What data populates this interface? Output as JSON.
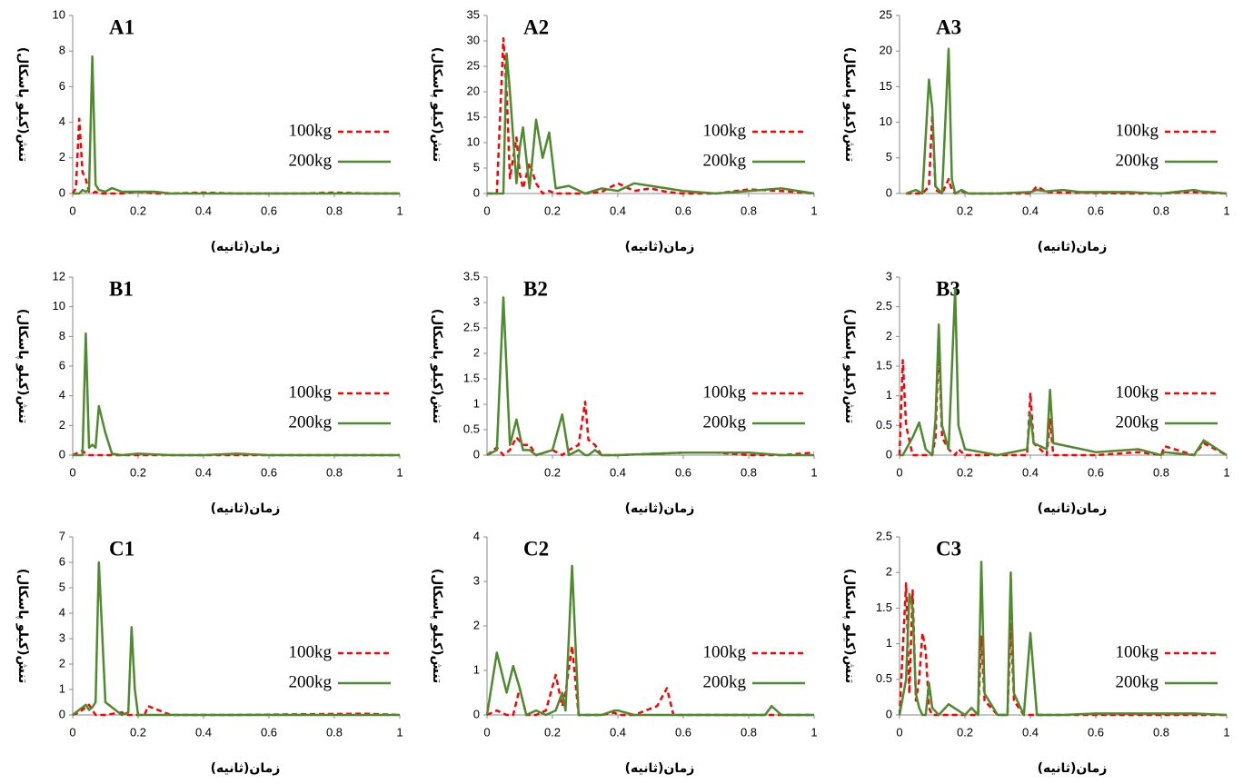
{
  "chart_data": [
    {
      "type": "line",
      "title": "A1",
      "title_color": "#2db34a",
      "xlabel": "زمان(ثانیه)",
      "ylabel": "تنش(کیلو پاسکال)",
      "x": [
        0,
        0.01,
        0.02,
        0.03,
        0.04,
        0.05,
        0.06,
        0.07,
        0.08,
        0.1,
        0.12,
        0.15,
        0.2,
        0.25,
        0.3,
        0.4,
        0.5,
        0.6,
        0.7,
        0.8,
        0.9,
        1
      ],
      "series": [
        {
          "name": "100kg",
          "color": "#ff0000",
          "dashed": true,
          "values": [
            0,
            0.3,
            4.2,
            1.2,
            0.8,
            0.1,
            0,
            0.1,
            0,
            0,
            0,
            0,
            0.1,
            0,
            0,
            0.05,
            0,
            0,
            0,
            0.05,
            0,
            0
          ]
        },
        {
          "name": "200kg",
          "color": "#4e8a2e",
          "dashed": false,
          "values": [
            0,
            0,
            0,
            0.2,
            0.1,
            0.2,
            7.7,
            0.5,
            0.2,
            0.1,
            0.3,
            0.1,
            0.1,
            0.1,
            0,
            0,
            0,
            0,
            0,
            0,
            0,
            0
          ]
        }
      ],
      "xlim": [
        0,
        1
      ],
      "xticks": [
        0,
        0.2,
        0.4,
        0.6,
        0.8,
        1
      ],
      "ylim": [
        0,
        10
      ],
      "yticks": [
        0,
        2,
        4,
        6,
        8,
        10
      ]
    },
    {
      "type": "line",
      "title": "A2",
      "title_color": "#2db34a",
      "xlabel": "زمان(ثانیه)",
      "ylabel": "تنش(کیلو پاسکال)",
      "x": [
        0,
        0.03,
        0.05,
        0.06,
        0.07,
        0.09,
        0.1,
        0.11,
        0.13,
        0.15,
        0.17,
        0.19,
        0.21,
        0.25,
        0.3,
        0.35,
        0.4,
        0.45,
        0.5,
        0.55,
        0.6,
        0.7,
        0.8,
        0.9,
        1
      ],
      "series": [
        {
          "name": "100kg",
          "color": "#ff0000",
          "dashed": true,
          "values": [
            0,
            0,
            30.5,
            20,
            3,
            11,
            4,
            1,
            6,
            2,
            0,
            0.5,
            0,
            0,
            0,
            0.3,
            2,
            0.5,
            1,
            0.3,
            0,
            0,
            0.8,
            0.5,
            0
          ]
        },
        {
          "name": "200kg",
          "color": "#4e8a2e",
          "dashed": false,
          "values": [
            0,
            0,
            0,
            27.5,
            20,
            2,
            9,
            13,
            1,
            14.5,
            7,
            12,
            1,
            1.5,
            0,
            1,
            0.5,
            2,
            1.5,
            1,
            0.5,
            0,
            0.5,
            1,
            0
          ]
        }
      ],
      "xlim": [
        0,
        1
      ],
      "xticks": [
        0,
        0.2,
        0.4,
        0.6,
        0.8,
        1
      ],
      "ylim": [
        0,
        35
      ],
      "yticks": [
        0,
        5,
        10,
        15,
        20,
        25,
        30,
        35
      ]
    },
    {
      "type": "line",
      "title": "A3",
      "title_color": "#2db34a",
      "xlabel": "زمان(ثانیه)",
      "ylabel": "تنش(کیلو پاسکال)",
      "x": [
        0.02,
        0.05,
        0.07,
        0.09,
        0.1,
        0.11,
        0.13,
        0.15,
        0.16,
        0.17,
        0.19,
        0.21,
        0.3,
        0.4,
        0.42,
        0.45,
        0.5,
        0.55,
        0.7,
        0.8,
        0.9,
        0.92,
        1
      ],
      "series": [
        {
          "name": "100kg",
          "color": "#ff0000",
          "dashed": true,
          "values": [
            0,
            0,
            0,
            1,
            11,
            0.5,
            0,
            2,
            0.5,
            0,
            0.3,
            0,
            0,
            0,
            1,
            0.2,
            0.1,
            0.1,
            0,
            0,
            0.2,
            0.1,
            0
          ]
        },
        {
          "name": "200kg",
          "color": "#4e8a2e",
          "dashed": false,
          "values": [
            0,
            0.5,
            0,
            16,
            12,
            1,
            0,
            20.3,
            2,
            0,
            0.5,
            0,
            0,
            0.2,
            0.5,
            0.3,
            0.5,
            0.2,
            0.2,
            0,
            0.5,
            0.3,
            0
          ]
        }
      ],
      "xlim": [
        0,
        1
      ],
      "xticks": [
        0.2,
        0.4,
        0.6,
        0.8,
        1
      ],
      "ylim": [
        0,
        25
      ],
      "yticks": [
        0,
        5,
        10,
        15,
        20,
        25
      ]
    },
    {
      "type": "line",
      "title": "B1",
      "title_color": "#f79646",
      "xlabel": "زمان(ثانیه)",
      "ylabel": "تنش(کیلو پاسکال)",
      "x": [
        0,
        0.03,
        0.04,
        0.05,
        0.06,
        0.07,
        0.08,
        0.1,
        0.12,
        0.15,
        0.2,
        0.3,
        0.4,
        0.5,
        0.6,
        0.8,
        1
      ],
      "series": [
        {
          "name": "100kg",
          "color": "#ff0000",
          "dashed": true,
          "values": [
            0,
            0.3,
            0.1,
            0,
            0,
            0,
            0,
            0,
            0,
            0,
            0,
            0,
            0,
            0,
            0,
            0,
            0
          ]
        },
        {
          "name": "200kg",
          "color": "#4e8a2e",
          "dashed": false,
          "values": [
            0,
            0,
            8.2,
            0.5,
            0.7,
            0.5,
            3.3,
            1.5,
            0.1,
            0,
            0.1,
            0,
            0,
            0.1,
            0,
            0,
            0
          ]
        }
      ],
      "xlim": [
        0,
        1
      ],
      "xticks": [
        0,
        0.2,
        0.4,
        0.6,
        0.8,
        1
      ],
      "ylim": [
        0,
        12
      ],
      "yticks": [
        0,
        2,
        4,
        6,
        8,
        10,
        12
      ]
    },
    {
      "type": "line",
      "title": "B2",
      "title_color": "#f79646",
      "xlabel": "زمان(ثانیه)",
      "ylabel": "تنش(کیلو پاسکال)",
      "x": [
        0,
        0.03,
        0.05,
        0.07,
        0.09,
        0.11,
        0.13,
        0.15,
        0.2,
        0.23,
        0.25,
        0.28,
        0.3,
        0.31,
        0.33,
        0.35,
        0.4,
        0.6,
        0.7,
        0.8,
        0.9,
        1
      ],
      "series": [
        {
          "name": "100kg",
          "color": "#ff0000",
          "dashed": true,
          "values": [
            0,
            0.15,
            0,
            0.1,
            0.35,
            0.2,
            0.2,
            0,
            0.1,
            0,
            0.1,
            0.2,
            1.05,
            0.3,
            0.2,
            0,
            0,
            0.05,
            0.05,
            0,
            0,
            0.05
          ]
        },
        {
          "name": "200kg",
          "color": "#4e8a2e",
          "dashed": false,
          "values": [
            0,
            0.1,
            3.1,
            0.2,
            0.7,
            0.1,
            0.1,
            0,
            0.1,
            0.8,
            0,
            0.1,
            0,
            0,
            0.1,
            0,
            0,
            0.05,
            0.05,
            0.05,
            0,
            0
          ]
        }
      ],
      "xlim": [
        0,
        1
      ],
      "xticks": [
        0.2,
        0.4,
        0.6,
        0.8,
        1
      ],
      "ylim": [
        0,
        3.5
      ],
      "yticks": [
        0,
        0.5,
        1,
        1.5,
        2,
        2.5,
        3,
        3.5
      ]
    },
    {
      "type": "line",
      "title": "B3",
      "title_color": "#f79646",
      "xlabel": "زمان(ثانیه)",
      "ylabel": "تنش(کیلو پاسکال)",
      "x": [
        0,
        0.01,
        0.02,
        0.04,
        0.06,
        0.08,
        0.1,
        0.11,
        0.12,
        0.13,
        0.15,
        0.17,
        0.18,
        0.2,
        0.25,
        0.3,
        0.39,
        0.4,
        0.41,
        0.45,
        0.46,
        0.47,
        0.6,
        0.73,
        0.8,
        0.81,
        0.9,
        0.93,
        1
      ],
      "series": [
        {
          "name": "100kg",
          "color": "#ff0000",
          "dashed": true,
          "values": [
            0,
            1.6,
            0.5,
            0,
            0,
            0,
            0,
            0.3,
            1.95,
            0.3,
            0.1,
            0,
            0.1,
            0,
            0,
            0,
            0,
            1.05,
            0.2,
            0,
            0.6,
            0,
            0,
            0.05,
            0,
            0.15,
            0,
            0.2,
            0
          ]
        },
        {
          "name": "200kg",
          "color": "#4e8a2e",
          "dashed": false,
          "values": [
            0,
            0,
            0.1,
            0.3,
            0.55,
            0.1,
            0,
            0.6,
            2.2,
            0.5,
            0.1,
            2.8,
            0.5,
            0.1,
            0.05,
            0,
            0.1,
            0.7,
            0.2,
            0.1,
            1.1,
            0.2,
            0.05,
            0.1,
            0,
            0.05,
            0,
            0.25,
            0
          ]
        }
      ],
      "xlim": [
        0,
        1
      ],
      "xticks": [
        0,
        0.2,
        0.4,
        0.6,
        0.8,
        1
      ],
      "ylim": [
        0,
        3
      ],
      "yticks": [
        0,
        0.5,
        1,
        1.5,
        2,
        2.5,
        3
      ]
    },
    {
      "type": "line",
      "title": "C1",
      "title_color": "#8b1a2a",
      "xlabel": "زمان(ثانیه)",
      "ylabel": "تنش(کیلو پاسکال)",
      "x": [
        0,
        0.02,
        0.04,
        0.05,
        0.06,
        0.07,
        0.08,
        0.1,
        0.15,
        0.17,
        0.18,
        0.19,
        0.2,
        0.22,
        0.23,
        0.3,
        0.5,
        0.89,
        1
      ],
      "series": [
        {
          "name": "100kg",
          "color": "#ff0000",
          "dashed": true,
          "values": [
            0,
            0.1,
            0.3,
            0.4,
            0.2,
            0,
            0,
            0,
            0.1,
            0,
            0,
            0,
            0,
            0,
            0.35,
            0,
            0,
            0.05,
            0
          ]
        },
        {
          "name": "200kg",
          "color": "#4e8a2e",
          "dashed": false,
          "values": [
            0,
            0.2,
            0.4,
            0.2,
            0.3,
            0.5,
            6,
            0.5,
            0,
            0.1,
            3.45,
            1,
            0,
            0,
            0,
            0,
            0,
            0,
            0
          ]
        }
      ],
      "xlim": [
        0,
        1
      ],
      "xticks": [
        0,
        0.2,
        0.4,
        0.6,
        0.8,
        1
      ],
      "ylim": [
        0,
        7
      ],
      "yticks": [
        0,
        1,
        2,
        3,
        4,
        5,
        6,
        7
      ]
    },
    {
      "type": "line",
      "title": "C2",
      "title_color": "#8b1a2a",
      "xlabel": "زمان(ثانیه)",
      "ylabel": "تنش(کیلو پاسکال)",
      "x": [
        0,
        0.03,
        0.06,
        0.08,
        0.1,
        0.12,
        0.15,
        0.18,
        0.21,
        0.23,
        0.24,
        0.26,
        0.28,
        0.35,
        0.39,
        0.4,
        0.45,
        0.52,
        0.55,
        0.57,
        0.7,
        0.85,
        0.87,
        0.9,
        1
      ],
      "series": [
        {
          "name": "100kg",
          "color": "#ff0000",
          "dashed": true,
          "values": [
            0,
            0.1,
            0,
            0,
            0.6,
            0,
            0,
            0.1,
            0.9,
            0.2,
            0.5,
            1.55,
            0,
            0,
            0.05,
            0,
            0,
            0.2,
            0.6,
            0,
            0,
            0,
            0,
            0,
            0
          ]
        },
        {
          "name": "200kg",
          "color": "#4e8a2e",
          "dashed": false,
          "values": [
            0,
            1.4,
            0.5,
            1.1,
            0.6,
            0,
            0.1,
            0,
            0.1,
            0.5,
            0.1,
            3.35,
            0,
            0,
            0.1,
            0.1,
            0,
            0,
            0,
            0,
            0,
            0,
            0.2,
            0,
            0
          ]
        }
      ],
      "xlim": [
        0,
        1
      ],
      "xticks": [
        0,
        0.2,
        0.4,
        0.6,
        0.8,
        1
      ],
      "ylim": [
        0,
        4
      ],
      "yticks": [
        0,
        1,
        2,
        3,
        4
      ]
    },
    {
      "type": "line",
      "title": "C3",
      "title_color": "#8b1a2a",
      "xlabel": "زمان(ثانیه)",
      "ylabel": "تنش(کیلو پاسکال)",
      "x": [
        0,
        0.02,
        0.03,
        0.04,
        0.05,
        0.06,
        0.07,
        0.08,
        0.09,
        0.1,
        0.12,
        0.15,
        0.2,
        0.22,
        0.24,
        0.25,
        0.26,
        0.3,
        0.33,
        0.34,
        0.35,
        0.38,
        0.4,
        0.42,
        0.5,
        0.6,
        0.9,
        1
      ],
      "series": [
        {
          "name": "100kg",
          "color": "#ff0000",
          "dashed": true,
          "values": [
            0,
            1.85,
            0.3,
            1.75,
            0.2,
            0.5,
            1.15,
            0.9,
            0.1,
            0,
            0,
            0,
            0,
            0,
            0,
            1.1,
            0.2,
            0,
            0,
            1.3,
            0.2,
            0,
            0,
            0,
            0,
            0,
            0,
            0
          ]
        },
        {
          "name": "200kg",
          "color": "#4e8a2e",
          "dashed": false,
          "values": [
            0,
            0.5,
            1.7,
            1.5,
            0.3,
            0.1,
            0,
            0,
            0.45,
            0.1,
            0,
            0.15,
            0,
            0.1,
            0,
            2.15,
            0.3,
            0,
            0,
            2,
            0.3,
            0,
            1.15,
            0,
            0,
            0.02,
            0.02,
            0
          ]
        }
      ],
      "xlim": [
        0,
        1
      ],
      "xticks": [
        0,
        0.2,
        0.4,
        0.6,
        0.8,
        1
      ],
      "ylim": [
        0,
        2.5
      ],
      "yticks": [
        0,
        0.5,
        1,
        1.5,
        2,
        2.5
      ]
    }
  ]
}
